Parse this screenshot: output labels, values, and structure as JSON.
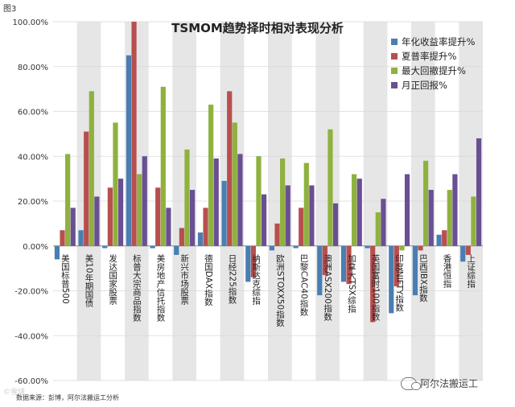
{
  "figure_label": "图3",
  "source_note": "数据来源：彭博，阿尔法搬运工分析",
  "watermark_left": "©雪球",
  "wechat_badge": "阿尔法搬运工",
  "colors": {
    "band": "#e6e6e6"
  },
  "chart_data": {
    "type": "bar",
    "title": "TSMOM趋势择时相对表现分析",
    "xlabel": "",
    "ylabel": "",
    "ylim": [
      -60,
      100
    ],
    "yticks": [
      -60,
      -40,
      -20,
      0,
      20,
      40,
      60,
      80,
      100
    ],
    "ytick_labels": [
      "-60.00%",
      "-40.00%",
      "-20.00%",
      "0.00%",
      "20.00%",
      "40.00%",
      "60.00%",
      "80.00%",
      "100.00%"
    ],
    "legend_position": "top-right",
    "categories": [
      "美国标普500",
      "美10年期国债",
      "发达国家股票",
      "标普大宗商品指数",
      "美房地产信托指数",
      "新兴市场股票",
      "德国DAX指数",
      "日经225指数",
      "纳斯达克综指",
      "欧洲STOXX50指数",
      "巴黎CAC40指数",
      "澳洲ASX200指数",
      "加拿大TSX综指",
      "英国富时100指数",
      "印度NIFTY指数",
      "巴西IBX指数",
      "香港恒指",
      "上证综指"
    ],
    "series": [
      {
        "name": "年化收益率提升%",
        "color": "#4a7eb3",
        "values": [
          -6,
          7,
          -1,
          85,
          -1,
          -4,
          6,
          29,
          -16,
          -2,
          -1,
          -22,
          -16,
          -1,
          -30,
          -22,
          5,
          -7
        ]
      },
      {
        "name": "夏普率提升%",
        "color": "#b84f4f",
        "values": [
          7,
          51,
          26,
          100,
          26,
          8,
          17,
          69,
          -14,
          10,
          17,
          -13,
          -17,
          -34,
          -18,
          -2,
          7,
          -4
        ]
      },
      {
        "name": "最大回撤提升%",
        "color": "#8fb13e",
        "values": [
          41,
          69,
          55,
          32,
          71,
          43,
          63,
          55,
          40,
          39,
          37,
          52,
          32,
          15,
          -2,
          38,
          25,
          22
        ]
      },
      {
        "name": "月正回报%",
        "color": "#6a4f93",
        "values": [
          17,
          22,
          30,
          40,
          17,
          25,
          39,
          41,
          23,
          27,
          27,
          19,
          30,
          21,
          32,
          25,
          32,
          48
        ]
      }
    ]
  }
}
